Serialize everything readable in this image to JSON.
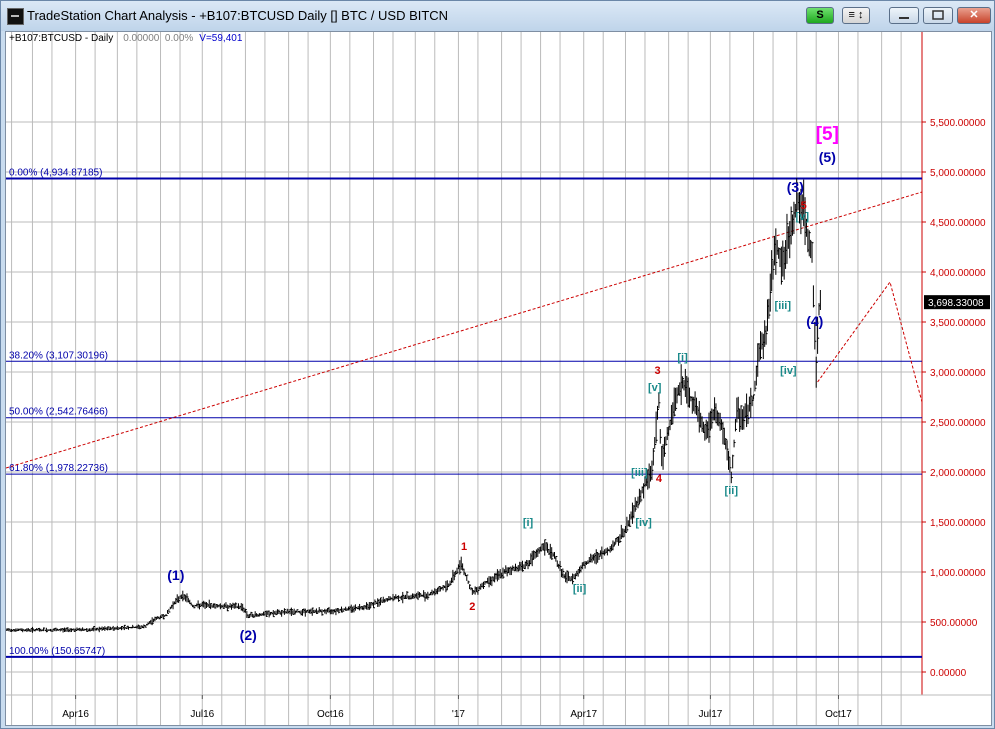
{
  "window": {
    "title": "TradeStation Chart Analysis - +B107:BTCUSD Daily [] BTC / USD BITCN",
    "s_button": "S",
    "bars_button": "≡ ↕",
    "close_button": "✕"
  },
  "info_bar": {
    "symbol": "+B107:BTCUSD - Daily",
    "value1": "0.00000",
    "value2": "0.00%",
    "volume": "V=59,401"
  },
  "colors": {
    "price_axis": "#cc0000",
    "fib_lines": "#0000aa",
    "trend_line": "#cc0000",
    "bars": "#000000",
    "grid": "#bbbbbb",
    "last_price_bg": "#000000"
  },
  "chart_data": {
    "type": "ohlc",
    "title": "+B107:BTCUSD - Daily",
    "y_ticks": [
      "5,500.00000",
      "5,000.00000",
      "4,500.00000",
      "4,000.00000",
      "3,500.00000",
      "3,000.00000",
      "2,500.00000",
      "2,000.00000",
      "1,500.00000",
      "1,000.00000",
      "500.00000",
      "0.00000"
    ],
    "y_tick_values": [
      5500,
      5000,
      4500,
      4000,
      3500,
      3000,
      2500,
      2000,
      1500,
      1000,
      500,
      0
    ],
    "ylim": [
      -530,
      6400
    ],
    "x_ticks": [
      "Apr16",
      "Jul16",
      "Oct16",
      "'17",
      "Apr17",
      "Jul17",
      "Oct17"
    ],
    "xlim": [
      "2016-02-11",
      "2017-11-30"
    ],
    "last_price": "3,698.33008",
    "last_price_value": 3698.33,
    "fib_levels": [
      {
        "label": "0.00% (4,934.87185)",
        "value": 4934.87
      },
      {
        "label": "38.20% (3,107.30196)",
        "value": 3107.3
      },
      {
        "label": "50.00% (2,542.76466)",
        "value": 2542.76
      },
      {
        "label": "61.80% (1,978.22736)",
        "value": 1978.23
      },
      {
        "label": "100.00% (150.65747)",
        "value": 150.66
      }
    ],
    "trend_line": [
      [
        "2016-02-11",
        2040
      ],
      [
        "2017-11-30",
        4800
      ]
    ],
    "projection": [
      [
        "2017-09-16",
        2900
      ],
      [
        "2017-11-07",
        3900
      ],
      [
        "2017-11-30",
        2700
      ]
    ],
    "series": [
      {
        "name": "BTCUSD Daily",
        "points": [
          [
            "2016-02-11",
            420
          ],
          [
            "2016-03-15",
            420
          ],
          [
            "2016-04-15",
            425
          ],
          [
            "2016-05-01",
            440
          ],
          [
            "2016-05-20",
            450
          ],
          [
            "2016-05-28",
            530
          ],
          [
            "2016-06-05",
            570
          ],
          [
            "2016-06-10",
            680
          ],
          [
            "2016-06-16",
            760
          ],
          [
            "2016-06-20",
            740
          ],
          [
            "2016-06-24",
            660
          ],
          [
            "2016-07-01",
            670
          ],
          [
            "2016-07-15",
            660
          ],
          [
            "2016-07-30",
            650
          ],
          [
            "2016-08-03",
            560
          ],
          [
            "2016-08-15",
            580
          ],
          [
            "2016-09-01",
            600
          ],
          [
            "2016-10-01",
            610
          ],
          [
            "2016-10-25",
            650
          ],
          [
            "2016-11-15",
            740
          ],
          [
            "2016-12-10",
            770
          ],
          [
            "2016-12-25",
            870
          ],
          [
            "2017-01-03",
            1090
          ],
          [
            "2017-01-08",
            900
          ],
          [
            "2017-01-11",
            790
          ],
          [
            "2017-01-20",
            890
          ],
          [
            "2017-02-05",
            1010
          ],
          [
            "2017-02-20",
            1080
          ],
          [
            "2017-03-03",
            1260
          ],
          [
            "2017-03-10",
            1180
          ],
          [
            "2017-03-18",
            950
          ],
          [
            "2017-03-24",
            930
          ],
          [
            "2017-04-01",
            1080
          ],
          [
            "2017-04-20",
            1230
          ],
          [
            "2017-05-01",
            1420
          ],
          [
            "2017-05-10",
            1720
          ],
          [
            "2017-05-20",
            2030
          ],
          [
            "2017-05-25",
            2700
          ],
          [
            "2017-05-27",
            2100
          ],
          [
            "2017-06-05",
            2700
          ],
          [
            "2017-06-11",
            2900
          ],
          [
            "2017-06-20",
            2650
          ],
          [
            "2017-06-27",
            2400
          ],
          [
            "2017-07-05",
            2600
          ],
          [
            "2017-07-10",
            2420
          ],
          [
            "2017-07-16",
            1950
          ],
          [
            "2017-07-20",
            2600
          ],
          [
            "2017-07-25",
            2550
          ],
          [
            "2017-08-01",
            2750
          ],
          [
            "2017-08-05",
            3200
          ],
          [
            "2017-08-10",
            3400
          ],
          [
            "2017-08-17",
            4300
          ],
          [
            "2017-08-22",
            4050
          ],
          [
            "2017-08-30",
            4580
          ],
          [
            "2017-09-01",
            4700
          ],
          [
            "2017-09-06",
            4620
          ],
          [
            "2017-09-09",
            4300
          ],
          [
            "2017-09-12",
            4150
          ],
          [
            "2017-09-15",
            3000
          ],
          [
            "2017-09-17",
            3650
          ],
          [
            "2017-09-18",
            3700
          ]
        ]
      }
    ],
    "wave_labels": [
      {
        "text": "(1)",
        "date": "2016-06-12",
        "price": 920,
        "color": "#0000aa",
        "size": 14
      },
      {
        "text": "(2)",
        "date": "2016-08-03",
        "price": 320,
        "color": "#0000aa",
        "size": 14
      },
      {
        "text": "(3)",
        "date": "2017-08-31",
        "price": 4800,
        "color": "#0000aa",
        "size": 14
      },
      {
        "text": "(4)",
        "date": "2017-09-14",
        "price": 3460,
        "color": "#0000aa",
        "size": 14
      },
      {
        "text": "(5)",
        "date": "2017-09-23",
        "price": 5100,
        "color": "#0000aa",
        "size": 14
      },
      {
        "text": "[5]",
        "date": "2017-09-23",
        "price": 5320,
        "color": "#ff00ff",
        "size": 19
      },
      {
        "text": "1",
        "date": "2017-01-05",
        "price": 1220,
        "color": "#cc0000",
        "size": 11
      },
      {
        "text": "2",
        "date": "2017-01-11",
        "price": 620,
        "color": "#cc0000",
        "size": 11
      },
      {
        "text": "3",
        "date": "2017-05-24",
        "price": 2980,
        "color": "#cc0000",
        "size": 11
      },
      {
        "text": "4",
        "date": "2017-05-25",
        "price": 1900,
        "color": "#cc0000",
        "size": 11
      },
      {
        "text": "5",
        "date": "2017-09-06",
        "price": 4630,
        "color": "#cc0000",
        "size": 11
      },
      {
        "text": "[i]",
        "date": "2017-02-20",
        "price": 1460,
        "color": "#1a8a8a",
        "size": 11
      },
      {
        "text": "[ii]",
        "date": "2017-03-29",
        "price": 800,
        "color": "#1a8a8a",
        "size": 11
      },
      {
        "text": "[iii]",
        "date": "2017-05-11",
        "price": 1960,
        "color": "#1a8a8a",
        "size": 11
      },
      {
        "text": "[iv]",
        "date": "2017-05-14",
        "price": 1460,
        "color": "#1a8a8a",
        "size": 11
      },
      {
        "text": "[v]",
        "date": "2017-05-22",
        "price": 2810,
        "color": "#1a8a8a",
        "size": 11
      },
      {
        "text": "[i]",
        "date": "2017-06-11",
        "price": 3110,
        "color": "#1a8a8a",
        "size": 11
      },
      {
        "text": "[ii]",
        "date": "2017-07-16",
        "price": 1780,
        "color": "#1a8a8a",
        "size": 11
      },
      {
        "text": "[iii]",
        "date": "2017-08-22",
        "price": 3630,
        "color": "#1a8a8a",
        "size": 11
      },
      {
        "text": "[iv]",
        "date": "2017-08-26",
        "price": 2980,
        "color": "#1a8a8a",
        "size": 11
      },
      {
        "text": "[v]",
        "date": "2017-09-05",
        "price": 4520,
        "color": "#1a8a8a",
        "size": 11
      }
    ]
  }
}
